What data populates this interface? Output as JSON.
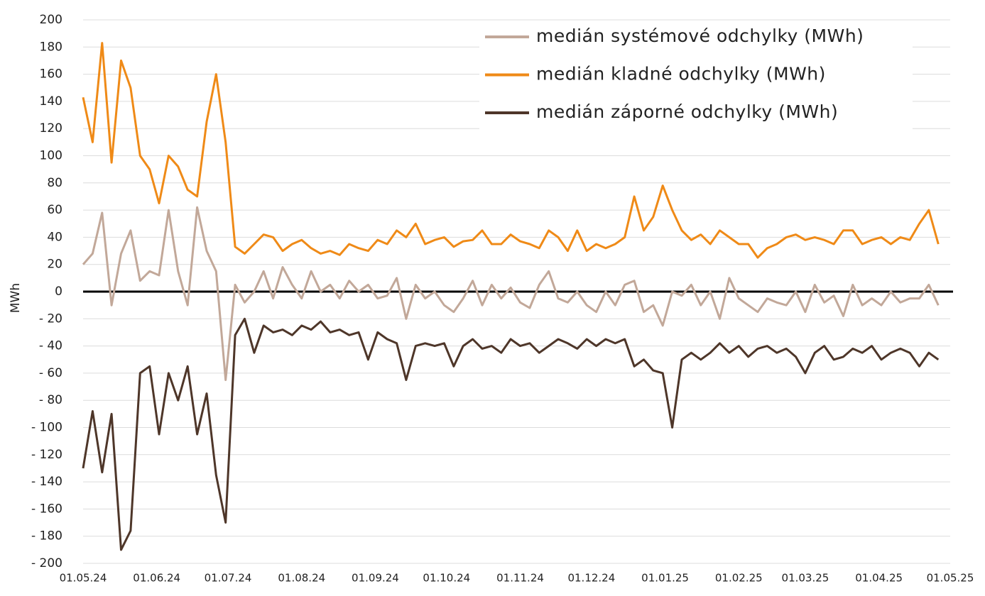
{
  "chart_data": {
    "type": "line",
    "y_label": "MWh",
    "grid": true,
    "legend": "top-right",
    "xlim": [
      "01.05.24",
      "01.05.25"
    ],
    "xticks": [
      "01.05.24",
      "01.06.24",
      "01.07.24",
      "01.08.24",
      "01.09.24",
      "01.10.24",
      "01.11.24",
      "01.12.24",
      "01.01.25",
      "01.02.25",
      "01.03.25",
      "01.04.25",
      "01.05.25"
    ],
    "ylim": [
      -200,
      200
    ],
    "yticks": [
      200,
      180,
      160,
      140,
      120,
      100,
      80,
      60,
      40,
      20,
      0,
      {
        "value": -20,
        "label": "- 20"
      },
      {
        "value": -40,
        "label": "- 40"
      },
      {
        "value": -60,
        "label": "- 60"
      },
      {
        "value": -80,
        "label": "- 80"
      },
      {
        "value": -100,
        "label": "- 100"
      },
      {
        "value": -120,
        "label": "- 120"
      },
      {
        "value": -140,
        "label": "- 140"
      },
      {
        "value": -160,
        "label": "- 160"
      },
      {
        "value": -180,
        "label": "- 180"
      },
      {
        "value": -200,
        "label": "- 200"
      }
    ],
    "x": [
      "01.05.24",
      "05.05.24",
      "09.05.24",
      "13.05.24",
      "17.05.24",
      "21.05.24",
      "25.05.24",
      "29.05.24",
      "02.06.24",
      "06.06.24",
      "10.06.24",
      "14.06.24",
      "18.06.24",
      "22.06.24",
      "26.06.24",
      "30.06.24",
      "04.07.24",
      "08.07.24",
      "12.07.24",
      "16.07.24",
      "20.07.24",
      "24.07.24",
      "28.07.24",
      "01.08.24",
      "05.08.24",
      "09.08.24",
      "13.08.24",
      "17.08.24",
      "21.08.24",
      "25.08.24",
      "29.08.24",
      "02.09.24",
      "06.09.24",
      "10.09.24",
      "14.09.24",
      "18.09.24",
      "22.09.24",
      "26.09.24",
      "30.09.24",
      "04.10.24",
      "08.10.24",
      "12.10.24",
      "16.10.24",
      "20.10.24",
      "24.10.24",
      "28.10.24",
      "01.11.24",
      "05.11.24",
      "09.11.24",
      "13.11.24",
      "17.11.24",
      "21.11.24",
      "25.11.24",
      "29.11.24",
      "03.12.24",
      "07.12.24",
      "11.12.24",
      "15.12.24",
      "19.12.24",
      "23.12.24",
      "27.12.24",
      "31.12.24",
      "04.01.25",
      "08.01.25",
      "12.01.25",
      "16.01.25",
      "20.01.25",
      "24.01.25",
      "28.01.25",
      "01.02.25",
      "05.02.25",
      "09.02.25",
      "13.02.25",
      "17.02.25",
      "21.02.25",
      "25.02.25",
      "01.03.25",
      "05.03.25",
      "09.03.25",
      "13.03.25",
      "17.03.25",
      "21.03.25",
      "25.03.25",
      "29.03.25",
      "02.04.25",
      "06.04.25",
      "10.04.25",
      "14.04.25",
      "18.04.25",
      "22.04.25",
      "26.04.25"
    ],
    "series": [
      {
        "name": "medián systémové odchylky (MWh)",
        "color": "#c2a899",
        "values": [
          20,
          28,
          58,
          -10,
          28,
          45,
          8,
          15,
          12,
          60,
          15,
          -10,
          62,
          30,
          15,
          -65,
          5,
          -8,
          0,
          15,
          -5,
          18,
          5,
          -5,
          15,
          0,
          5,
          -5,
          8,
          0,
          5,
          -5,
          -3,
          10,
          -20,
          5,
          -5,
          0,
          -10,
          -15,
          -5,
          8,
          -10,
          5,
          -5,
          3,
          -8,
          -12,
          5,
          15,
          -5,
          -8,
          0,
          -10,
          -15,
          0,
          -10,
          5,
          8,
          -15,
          -10,
          -25,
          0,
          -3,
          5,
          -10,
          0,
          -20,
          10,
          -5,
          -10,
          -15,
          -5,
          -8,
          -10,
          0,
          -15,
          5,
          -8,
          -3,
          -18,
          5,
          -10,
          -5,
          -10,
          0,
          -8,
          -5,
          -5,
          5,
          -10
        ]
      },
      {
        "name": "medián kladné odchylky (MWh)",
        "color": "#ef8a17",
        "values": [
          143,
          110,
          183,
          95,
          170,
          150,
          100,
          90,
          65,
          100,
          92,
          75,
          70,
          125,
          160,
          110,
          33,
          28,
          35,
          42,
          40,
          30,
          35,
          38,
          32,
          28,
          30,
          27,
          35,
          32,
          30,
          38,
          35,
          45,
          40,
          50,
          35,
          38,
          40,
          33,
          37,
          38,
          45,
          35,
          35,
          42,
          37,
          35,
          32,
          45,
          40,
          30,
          45,
          30,
          35,
          32,
          35,
          40,
          70,
          45,
          55,
          78,
          60,
          45,
          38,
          42,
          35,
          45,
          40,
          35,
          35,
          25,
          32,
          35,
          40,
          42,
          38,
          40,
          38,
          35,
          45,
          45,
          35,
          38,
          40,
          35,
          40,
          38,
          50,
          60,
          35
        ]
      },
      {
        "name": "medián záporné odchylky (MWh)",
        "color": "#4e3629",
        "values": [
          -130,
          -88,
          -133,
          -90,
          -190,
          -176,
          -60,
          -55,
          -105,
          -60,
          -80,
          -55,
          -105,
          -75,
          -135,
          -170,
          -32,
          -20,
          -45,
          -25,
          -30,
          -28,
          -32,
          -25,
          -28,
          -22,
          -30,
          -28,
          -32,
          -30,
          -50,
          -30,
          -35,
          -38,
          -65,
          -40,
          -38,
          -40,
          -38,
          -55,
          -40,
          -35,
          -42,
          -40,
          -45,
          -35,
          -40,
          -38,
          -45,
          -40,
          -35,
          -38,
          -42,
          -35,
          -40,
          -35,
          -38,
          -35,
          -55,
          -50,
          -58,
          -60,
          -100,
          -50,
          -45,
          -50,
          -45,
          -38,
          -45,
          -40,
          -48,
          -42,
          -40,
          -45,
          -42,
          -48,
          -60,
          -45,
          -40,
          -50,
          -48,
          -42,
          -45,
          -40,
          -50,
          -45,
          -42,
          -45,
          -55,
          -45,
          -50
        ]
      }
    ]
  }
}
